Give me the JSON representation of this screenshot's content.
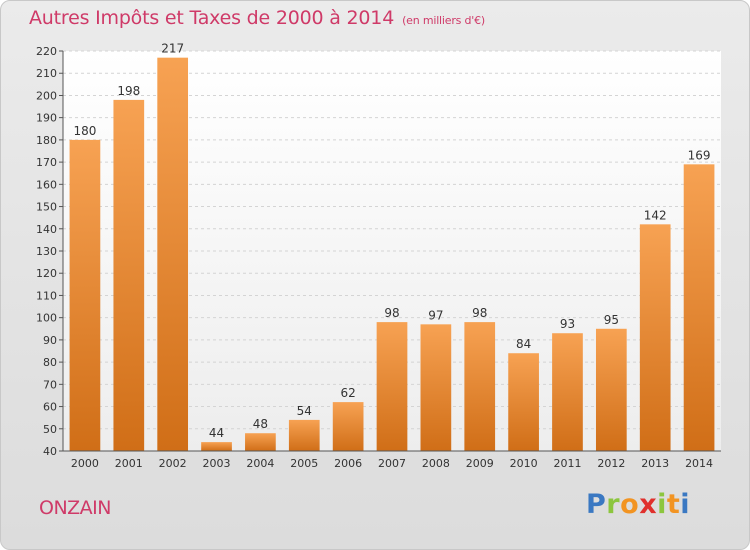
{
  "header": {
    "title": "Autres Impôts et Taxes de 2000 à 2014",
    "subtitle": "(en milliers d'€)"
  },
  "footer": {
    "commune": "ONZAIN",
    "logo_letters": [
      "P",
      "r",
      "o",
      "x",
      "i",
      "t",
      "i"
    ]
  },
  "colors": {
    "title": "#cf3a68",
    "bar_top": "#f7a253",
    "bar_bottom": "#d06e17",
    "logo": [
      "#3a78c2",
      "#8cc63e",
      "#f29422",
      "#e0302c",
      "#8cc63e",
      "#f29422",
      "#3a78c2"
    ]
  },
  "chart_data": {
    "type": "bar",
    "categories": [
      "2000",
      "2001",
      "2002",
      "2003",
      "2004",
      "2005",
      "2006",
      "2007",
      "2008",
      "2009",
      "2010",
      "2011",
      "2012",
      "2013",
      "2014"
    ],
    "values": [
      180,
      198,
      217,
      44,
      48,
      54,
      62,
      98,
      97,
      98,
      84,
      93,
      95,
      142,
      169
    ],
    "ylim": [
      40,
      220
    ],
    "yticks": [
      40,
      50,
      60,
      70,
      80,
      90,
      100,
      110,
      120,
      130,
      140,
      150,
      160,
      170,
      180,
      190,
      200,
      210,
      220
    ],
    "grid": true
  }
}
